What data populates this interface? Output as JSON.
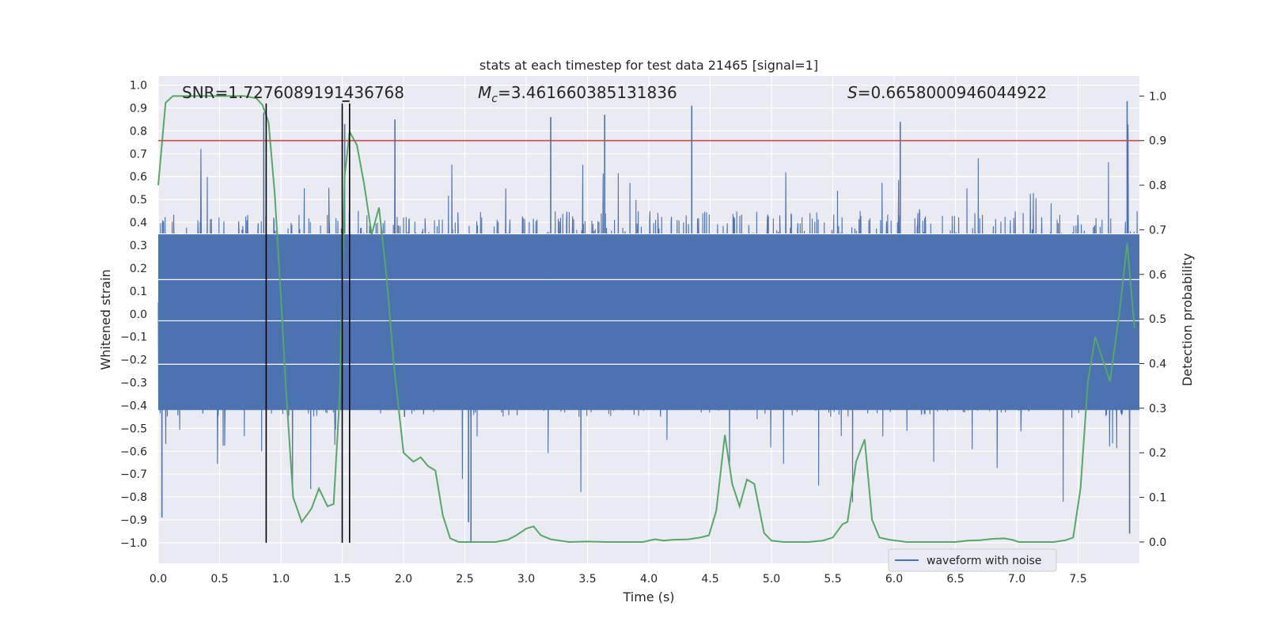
{
  "chart_data": {
    "type": "line",
    "title": "stats at each timestep for test data 21465 [signal=1]",
    "xlabel": "Time (s)",
    "ylabel": "Whitened strain",
    "y2label": "Detection probability",
    "xlim": [
      0.0,
      8.0
    ],
    "ylim": [
      -1.09,
      1.04
    ],
    "y2lim": [
      -0.048,
      1.045
    ],
    "xticks": [
      "0.0",
      "0.5",
      "1.0",
      "1.5",
      "2.0",
      "2.5",
      "3.0",
      "3.5",
      "4.0",
      "4.5",
      "5.0",
      "5.5",
      "6.0",
      "6.5",
      "7.0",
      "7.5"
    ],
    "yticks": [
      "1.0",
      "0.9",
      "0.8",
      "0.7",
      "0.6",
      "0.5",
      "0.4",
      "0.3",
      "0.2",
      "0.1",
      "0.0",
      "-0.1",
      "-0.2",
      "-0.3",
      "-0.4",
      "-0.5",
      "-0.6",
      "-0.7",
      "-0.8",
      "-0.9",
      "-1.0"
    ],
    "y2ticks": [
      "1.0",
      "0.9",
      "0.8",
      "0.7",
      "0.6",
      "0.5",
      "0.4",
      "0.3",
      "0.2",
      "0.1",
      "0.0"
    ],
    "annotations": {
      "snr_label": "SNR=1.7276089191436768",
      "mc_symbol": "M",
      "mc_sub": "c",
      "mc_value": "=3.461660385131836",
      "s_symbol": "S",
      "s_value": "=0.6658000946044922"
    },
    "threshold": {
      "value": 0.9,
      "axis": "y2",
      "color": "#c44e52"
    },
    "vertical_lines": [
      0.88,
      1.5,
      1.56
    ],
    "legend": {
      "label": "waveform with noise",
      "position": "lower-right"
    },
    "series": [
      {
        "name": "waveform with noise",
        "axis": "y",
        "color": "#4c72b0",
        "description": "dense whitened strain noise, typical envelope about ±0.45 with spikes up to ±0.95",
        "spikes": [
          {
            "x": 0.03,
            "y": -0.89
          },
          {
            "x": 0.86,
            "y": 0.88
          },
          {
            "x": 1.52,
            "y": 0.83
          },
          {
            "x": 1.93,
            "y": 0.85
          },
          {
            "x": 2.55,
            "y": -1.0
          },
          {
            "x": 2.53,
            "y": -0.91
          },
          {
            "x": 3.2,
            "y": 0.86
          },
          {
            "x": 3.64,
            "y": 0.87
          },
          {
            "x": 4.35,
            "y": 0.91
          },
          {
            "x": 6.05,
            "y": 0.84
          },
          {
            "x": 7.9,
            "y": 0.93
          },
          {
            "x": 7.92,
            "y": -0.96
          }
        ]
      },
      {
        "name": "detection probability",
        "axis": "y2",
        "color": "#55a868",
        "x": [
          0.0,
          0.06,
          0.12,
          0.2,
          0.3,
          0.4,
          0.5,
          0.6,
          0.7,
          0.8,
          0.85,
          0.9,
          0.95,
          1.0,
          1.04,
          1.1,
          1.17,
          1.25,
          1.31,
          1.38,
          1.43,
          1.48,
          1.52,
          1.56,
          1.62,
          1.68,
          1.74,
          1.8,
          1.86,
          1.92,
          2.0,
          2.08,
          2.14,
          2.2,
          2.26,
          2.32,
          2.38,
          2.45,
          2.55,
          2.65,
          2.75,
          2.85,
          2.92,
          3.0,
          3.06,
          3.12,
          3.2,
          3.35,
          3.5,
          3.65,
          3.8,
          3.95,
          4.05,
          4.12,
          4.2,
          4.32,
          4.42,
          4.49,
          4.55,
          4.62,
          4.68,
          4.74,
          4.8,
          4.86,
          4.94,
          5.0,
          5.1,
          5.2,
          5.3,
          5.42,
          5.5,
          5.58,
          5.62,
          5.69,
          5.76,
          5.82,
          5.88,
          5.96,
          6.1,
          6.3,
          6.5,
          6.6,
          6.7,
          6.8,
          6.9,
          6.96,
          7.02,
          7.1,
          7.2,
          7.3,
          7.4,
          7.46,
          7.52,
          7.58,
          7.64,
          7.7,
          7.76,
          7.84,
          7.9,
          7.96
        ],
        "y": [
          0.8,
          0.985,
          1.0,
          1.0,
          1.0,
          1.0,
          1.0,
          1.0,
          1.0,
          0.995,
          0.98,
          0.94,
          0.78,
          0.55,
          0.35,
          0.1,
          0.045,
          0.075,
          0.12,
          0.08,
          0.085,
          0.33,
          0.82,
          0.92,
          0.89,
          0.8,
          0.69,
          0.75,
          0.6,
          0.4,
          0.2,
          0.18,
          0.19,
          0.17,
          0.16,
          0.06,
          0.008,
          0.0,
          0.0,
          0.0,
          0.0,
          0.005,
          0.015,
          0.03,
          0.035,
          0.015,
          0.006,
          0.0,
          0.001,
          0.0,
          0.0,
          0.0,
          0.006,
          0.003,
          0.005,
          0.006,
          0.01,
          0.015,
          0.07,
          0.24,
          0.13,
          0.08,
          0.14,
          0.13,
          0.02,
          0.003,
          0.0,
          0.0,
          0.0,
          0.003,
          0.01,
          0.04,
          0.045,
          0.18,
          0.23,
          0.05,
          0.01,
          0.005,
          0.0,
          0.0,
          0.0,
          0.003,
          0.004,
          0.007,
          0.008,
          0.005,
          0.0,
          0.0,
          0.0,
          0.0,
          0.004,
          0.01,
          0.12,
          0.36,
          0.46,
          0.41,
          0.36,
          0.52,
          0.67,
          0.48
        ]
      }
    ]
  }
}
